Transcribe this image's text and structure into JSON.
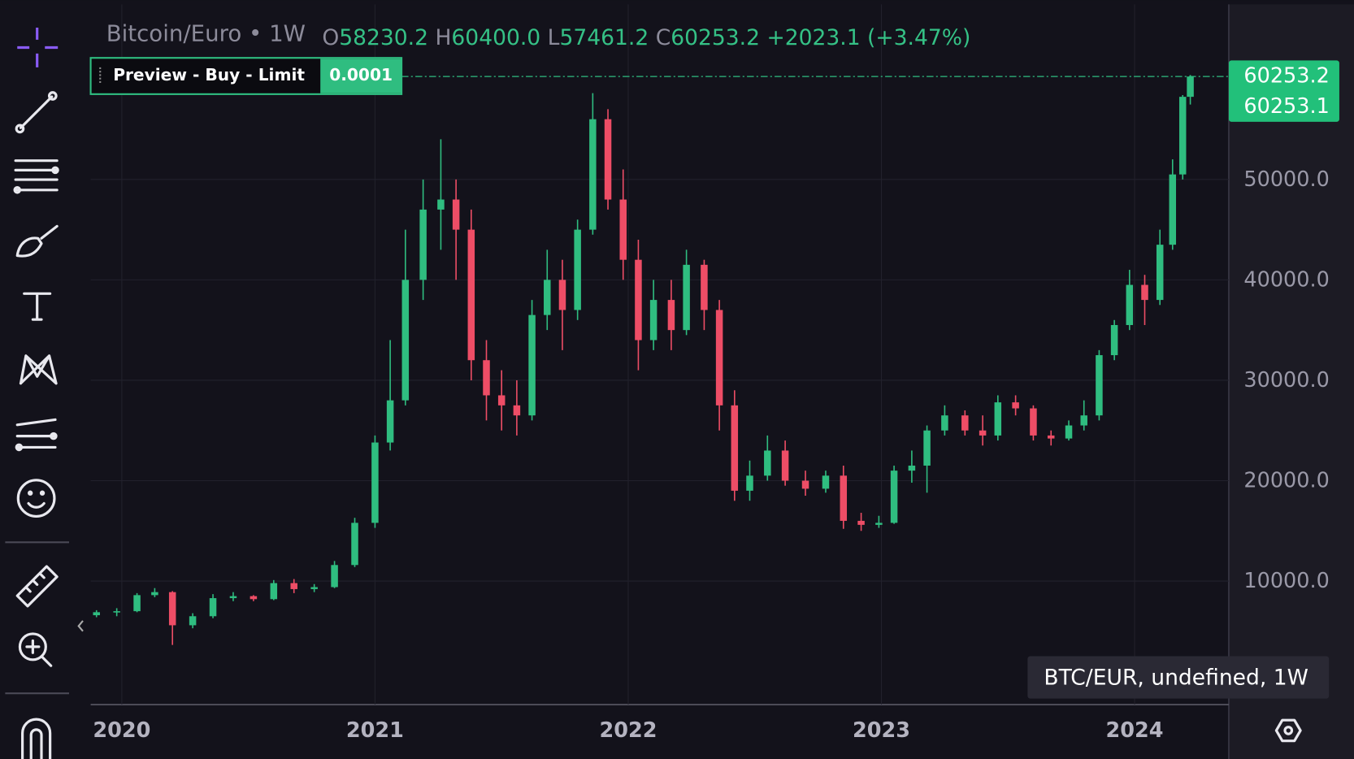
{
  "header": {
    "symbol": "Bitcoin/Euro • 1W",
    "ohlc": [
      {
        "label": "O",
        "value": "58230.2"
      },
      {
        "label": "H",
        "value": "60400.0"
      },
      {
        "label": "L",
        "value": "57461.2"
      },
      {
        "label": "C",
        "value": "60253.2"
      }
    ],
    "change": "+2023.1 (+3.47%)"
  },
  "order_preview": {
    "label": "Preview -  Buy - Limit",
    "quantity": "0.0001"
  },
  "price_labels": [
    "60253.2",
    "60253.1"
  ],
  "tooltip": "BTC/EUR, undefined, 1W",
  "chart_data": {
    "type": "candlestick",
    "up_color": "#2fbd80",
    "down_color": "#ee4d66",
    "grid": true,
    "last_price": 60253.2,
    "xlim": [
      2019.877,
      2024.372
    ],
    "xticks": [
      2020,
      2021,
      2022,
      2023,
      2024
    ],
    "ylim": [
      -2300,
      67440
    ],
    "yticks": [
      {
        "value": 10000,
        "label": "10000.0"
      },
      {
        "value": 20000,
        "label": "20000.0"
      },
      {
        "value": 30000,
        "label": "30000.0"
      },
      {
        "value": 40000,
        "label": "40000.0"
      },
      {
        "value": 50000,
        "label": "50000.0"
      }
    ],
    "x": [
      2019.9,
      2019.98,
      2020.06,
      2020.13,
      2020.2,
      2020.28,
      2020.36,
      2020.44,
      2020.52,
      2020.6,
      2020.68,
      2020.76,
      2020.84,
      2020.92,
      2021.0,
      2021.06,
      2021.12,
      2021.19,
      2021.26,
      2021.32,
      2021.38,
      2021.44,
      2021.5,
      2021.56,
      2021.62,
      2021.68,
      2021.74,
      2021.8,
      2021.86,
      2021.92,
      2021.98,
      2022.04,
      2022.1,
      2022.17,
      2022.23,
      2022.3,
      2022.36,
      2022.42,
      2022.48,
      2022.55,
      2022.62,
      2022.7,
      2022.78,
      2022.85,
      2022.92,
      2022.99,
      2023.05,
      2023.12,
      2023.18,
      2023.25,
      2023.33,
      2023.4,
      2023.46,
      2023.53,
      2023.6,
      2023.67,
      2023.74,
      2023.8,
      2023.86,
      2023.92,
      2023.98,
      2024.04,
      2024.1,
      2024.15,
      2024.19,
      2024.22
    ],
    "open": [
      6600,
      6900,
      7000,
      8600,
      8900,
      5600,
      6500,
      8300,
      8500,
      8200,
      9800,
      9200,
      9400,
      11600,
      15800,
      23800,
      28000,
      40000,
      47000,
      48000,
      45000,
      32000,
      28500,
      27500,
      26500,
      36500,
      40000,
      37000,
      45000,
      56000,
      48000,
      42000,
      34000,
      38000,
      35000,
      41500,
      37000,
      27500,
      19000,
      20500,
      23000,
      20000,
      19200,
      20500,
      16000,
      15600,
      15800,
      21000,
      21500,
      25000,
      26500,
      25000,
      24500,
      27800,
      27200,
      24500,
      24200,
      25500,
      26500,
      32500,
      35500,
      39500,
      38000,
      43500,
      50500,
      58230.2
    ],
    "high": [
      7100,
      7300,
      8800,
      9300,
      9000,
      6800,
      8700,
      8900,
      8600,
      10100,
      10200,
      9700,
      12000,
      16300,
      24500,
      34000,
      45000,
      50000,
      54000,
      50000,
      47000,
      34000,
      31000,
      30000,
      38000,
      43000,
      42000,
      46000,
      58600,
      57000,
      51000,
      44000,
      40000,
      40000,
      43000,
      42000,
      38000,
      29000,
      22000,
      24500,
      24000,
      21000,
      21000,
      21500,
      16800,
      16500,
      21500,
      23000,
      25500,
      27500,
      27000,
      26500,
      28500,
      28500,
      27500,
      25000,
      26000,
      28000,
      33000,
      36000,
      41000,
      40500,
      45000,
      52000,
      58400,
      60400
    ],
    "low": [
      6400,
      6500,
      6900,
      8400,
      3640,
      5300,
      6300,
      8000,
      8000,
      8100,
      8800,
      8900,
      9300,
      11400,
      15300,
      23000,
      27500,
      38000,
      43000,
      40000,
      30000,
      26000,
      25000,
      24500,
      26000,
      35000,
      33000,
      36000,
      44500,
      47000,
      40000,
      31000,
      33000,
      33000,
      34500,
      35000,
      25000,
      18000,
      18000,
      20000,
      19500,
      18500,
      18800,
      15200,
      15000,
      15300,
      15700,
      19800,
      18800,
      24500,
      24500,
      23500,
      24000,
      26500,
      24000,
      23500,
      24000,
      25000,
      26000,
      32000,
      35000,
      35500,
      37500,
      43000,
      50000,
      57461.2
    ],
    "close": [
      6900,
      7000,
      8600,
      8900,
      5600,
      6500,
      8300,
      8500,
      8200,
      9800,
      9200,
      9400,
      11600,
      15800,
      23800,
      28000,
      40000,
      47000,
      48000,
      45000,
      32000,
      28500,
      27500,
      26500,
      36500,
      40000,
      37000,
      45000,
      56000,
      48000,
      42000,
      34000,
      38000,
      35000,
      41500,
      37000,
      27500,
      19000,
      20500,
      23000,
      20000,
      19200,
      20500,
      16000,
      15600,
      15800,
      21000,
      21500,
      25000,
      26500,
      25000,
      24500,
      27800,
      27200,
      24500,
      24200,
      25500,
      26500,
      32500,
      35500,
      39500,
      38000,
      43500,
      50500,
      58230.2,
      60253.2
    ]
  }
}
